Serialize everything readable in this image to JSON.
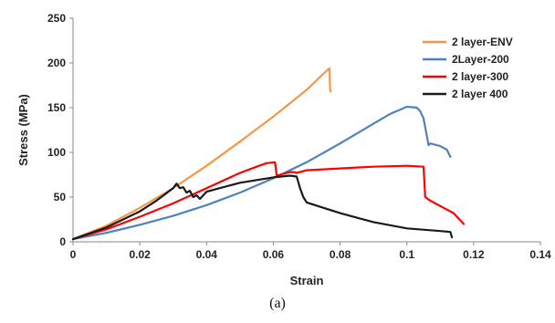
{
  "chart_data": {
    "type": "line",
    "title": "",
    "xlabel": "Strain",
    "ylabel": "Stress (MPa)",
    "xlim": [
      0,
      0.14
    ],
    "ylim": [
      0,
      250
    ],
    "x_ticks": [
      "0",
      "0.02",
      "0.04",
      "0.06",
      "0.08",
      "0.1",
      "0.12",
      "0.14"
    ],
    "y_ticks": [
      "0",
      "50",
      "100",
      "150",
      "200",
      "250"
    ],
    "grid": false,
    "legend_position": "top-right",
    "caption": "(a)",
    "series": [
      {
        "name": "2 layer-ENV",
        "color": "#f79646",
        "x": [
          0,
          0.01,
          0.02,
          0.03,
          0.04,
          0.05,
          0.06,
          0.07,
          0.075,
          0.0765,
          0.0768,
          0.077,
          0.0772
        ],
        "y": [
          3,
          18,
          38,
          60,
          85,
          112,
          140,
          170,
          188,
          193,
          194,
          170,
          168
        ]
      },
      {
        "name": "2Layer-200",
        "color": "#4f81bd",
        "x": [
          0,
          0.01,
          0.02,
          0.03,
          0.04,
          0.05,
          0.06,
          0.07,
          0.08,
          0.09,
          0.095,
          0.1,
          0.103,
          0.104,
          0.105,
          0.106,
          0.1065,
          0.107,
          0.11,
          0.112,
          0.113
        ],
        "y": [
          3,
          10,
          19,
          29,
          41,
          55,
          71,
          89,
          110,
          132,
          143,
          151,
          150,
          146,
          138,
          118,
          108,
          110,
          107,
          103,
          95
        ]
      },
      {
        "name": "2 layer-300",
        "color": "#ff0000",
        "x": [
          0,
          0.01,
          0.02,
          0.03,
          0.04,
          0.05,
          0.055,
          0.058,
          0.0605,
          0.061,
          0.062,
          0.065,
          0.066,
          0.067,
          0.07,
          0.08,
          0.09,
          0.1,
          0.105,
          0.1055,
          0.107,
          0.11,
          0.114,
          0.117
        ],
        "y": [
          3,
          14,
          28,
          43,
          60,
          77,
          84,
          88,
          89,
          74,
          75,
          78,
          78,
          77,
          80,
          82,
          84,
          85,
          84,
          50,
          46,
          40,
          32,
          20
        ]
      },
      {
        "name": "2 layer 400",
        "color": "#1a1a1a",
        "x": [
          0,
          0.01,
          0.02,
          0.025,
          0.03,
          0.031,
          0.032,
          0.033,
          0.034,
          0.035,
          0.036,
          0.037,
          0.038,
          0.04,
          0.05,
          0.06,
          0.065,
          0.067,
          0.068,
          0.069,
          0.07,
          0.08,
          0.09,
          0.1,
          0.11,
          0.113,
          0.1135
        ],
        "y": [
          3,
          16,
          34,
          46,
          60,
          65,
          60,
          61,
          55,
          57,
          50,
          52,
          48,
          56,
          66,
          72,
          74,
          73,
          60,
          50,
          44,
          32,
          22,
          15,
          12,
          11,
          5
        ]
      }
    ]
  }
}
